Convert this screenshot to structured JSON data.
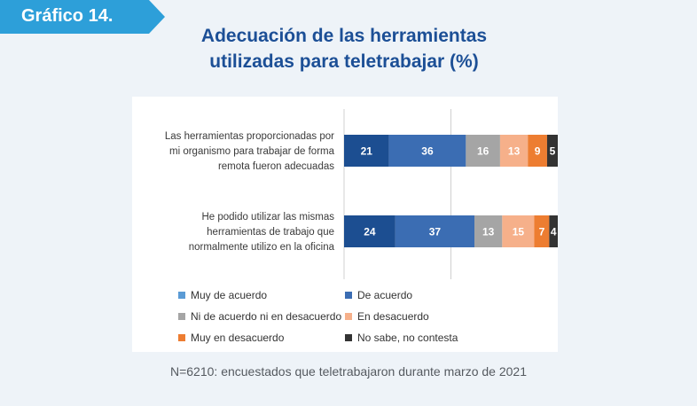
{
  "badge": {
    "label": "Gráfico 14."
  },
  "colors": {
    "badge": "#2d9fd9",
    "title": "#1c4f96",
    "series": [
      "#1c4e91",
      "#3b6db3",
      "#a5a5a5",
      "#f6b08a",
      "#ed7d31",
      "#333333"
    ]
  },
  "chart_data": {
    "type": "bar",
    "orientation": "horizontal",
    "stacked": true,
    "title": "Adecuación de las herramientas utilizadas para teletrabajar (%)",
    "title_lines": [
      "Adecuación de las herramientas",
      "utilizadas para teletrabajar (%)"
    ],
    "categories": [
      "Las herramientas proporcionadas por mi organismo para trabajar de forma remota fueron adecuadas",
      "He podido utilizar las mismas herramientas de trabajo que normalmente utilizo en la oficina"
    ],
    "category_lines": [
      [
        "Las herramientas proporcionadas por",
        "mi organismo para trabajar de forma",
        "remota fueron adecuadas"
      ],
      [
        "He podido utilizar las mismas",
        "herramientas de trabajo que",
        "normalmente utilizo en la oficina"
      ]
    ],
    "series": [
      {
        "name": "Muy de acuerdo",
        "values": [
          21,
          24
        ],
        "color": "#1c4e91",
        "legend_color": "#5b9bd5",
        "label_color": "#ffffff"
      },
      {
        "name": "De acuerdo",
        "values": [
          36,
          37
        ],
        "color": "#3b6db3",
        "legend_color": "#3b6db3",
        "label_color": "#ffffff"
      },
      {
        "name": "Ni de acuerdo ni en desacuerdo",
        "values": [
          16,
          13
        ],
        "color": "#a5a5a5",
        "legend_color": "#a5a5a5",
        "label_color": "#ffffff"
      },
      {
        "name": "En desacuerdo",
        "values": [
          13,
          15
        ],
        "color": "#f6b08a",
        "legend_color": "#f6b08a",
        "label_color": "#ffffff"
      },
      {
        "name": "Muy en desacuerdo",
        "values": [
          9,
          7
        ],
        "color": "#ed7d31",
        "legend_color": "#ed7d31",
        "label_color": "#ffffff"
      },
      {
        "name": "No sabe, no contesta",
        "values": [
          5,
          4
        ],
        "color": "#333333",
        "legend_color": "#333333",
        "label_color": "#ffffff"
      }
    ],
    "xlim": [
      0,
      100
    ],
    "grid": true,
    "legend_position": "bottom"
  },
  "footnote": "N=6210: encuestados que teletrabajaron durante marzo de 2021"
}
